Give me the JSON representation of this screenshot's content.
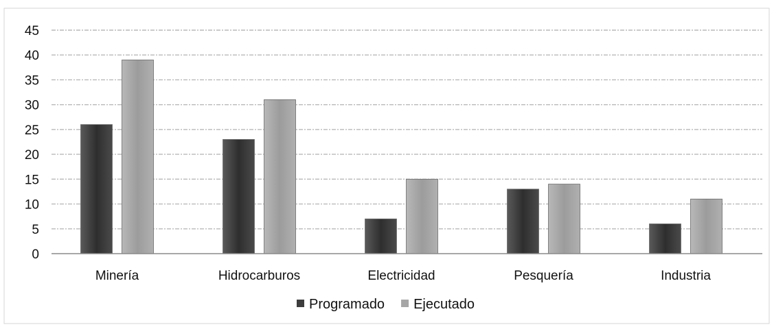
{
  "chart_data": {
    "type": "bar",
    "categories": [
      "Minería",
      "Hidrocarburos",
      "Electricidad",
      "Pesquería",
      "Industria"
    ],
    "series": [
      {
        "name": "Programado",
        "values": [
          26,
          23,
          7,
          13,
          6
        ],
        "color": "#3d3d3d"
      },
      {
        "name": "Ejecutado",
        "values": [
          39,
          31,
          15,
          14,
          11
        ],
        "color": "#a6a6a6"
      }
    ],
    "title": "",
    "xlabel": "",
    "ylabel": "",
    "ylim": [
      0,
      45
    ],
    "yticks": [
      0,
      5,
      10,
      15,
      20,
      25,
      30,
      35,
      40,
      45
    ],
    "grid": true,
    "legend": "bottom-center"
  }
}
